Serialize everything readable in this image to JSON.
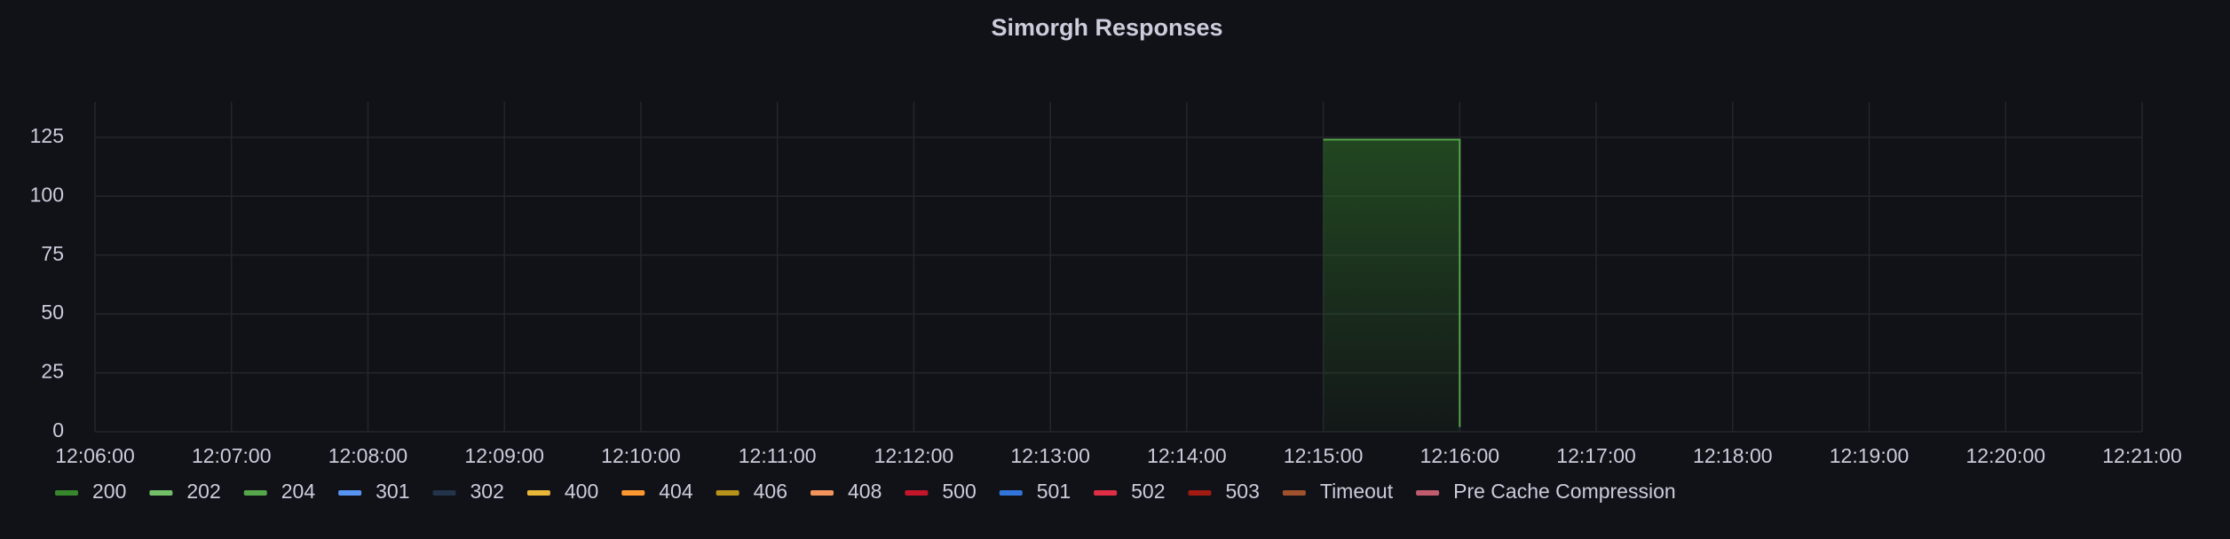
{
  "chart_data": {
    "type": "line",
    "title": "Simorgh Responses",
    "x": [
      "12:15:00",
      "12:16:00",
      "12:16:00"
    ],
    "xlim": [
      "12:06:00",
      "12:21:00"
    ],
    "xticks": [
      "12:06:00",
      "12:07:00",
      "12:08:00",
      "12:09:00",
      "12:10:00",
      "12:11:00",
      "12:12:00",
      "12:13:00",
      "12:14:00",
      "12:15:00",
      "12:16:00",
      "12:17:00",
      "12:18:00",
      "12:19:00",
      "12:20:00",
      "12:21:00"
    ],
    "ylim": [
      0,
      140
    ],
    "yticks": [
      0,
      25,
      50,
      75,
      100,
      125
    ],
    "grid": true,
    "legend": "bottom",
    "series": [
      {
        "name": "200",
        "color": "#37872d",
        "values": [
          124,
          124,
          2
        ]
      },
      {
        "name": "202",
        "color": "#73bf69",
        "values": [
          null,
          null,
          null
        ]
      },
      {
        "name": "204",
        "color": "#56a64b",
        "values": [
          null,
          null,
          null
        ]
      },
      {
        "name": "301",
        "color": "#5794f2",
        "values": [
          null,
          null,
          null
        ]
      },
      {
        "name": "302",
        "color": "#22334a",
        "values": [
          null,
          null,
          null
        ]
      },
      {
        "name": "400",
        "color": "#eab839",
        "values": [
          null,
          null,
          null
        ]
      },
      {
        "name": "404",
        "color": "#ff9830",
        "values": [
          null,
          null,
          null
        ]
      },
      {
        "name": "406",
        "color": "#b8931b",
        "values": [
          null,
          null,
          null
        ]
      },
      {
        "name": "408",
        "color": "#f2945c",
        "values": [
          null,
          null,
          null
        ]
      },
      {
        "name": "500",
        "color": "#c4162a",
        "values": [
          null,
          null,
          null
        ]
      },
      {
        "name": "501",
        "color": "#3274d9",
        "values": [
          null,
          null,
          null
        ]
      },
      {
        "name": "502",
        "color": "#e02f44",
        "values": [
          null,
          null,
          null
        ]
      },
      {
        "name": "503",
        "color": "#a11b12",
        "values": [
          null,
          null,
          null
        ]
      },
      {
        "name": "Timeout",
        "color": "#a0522d",
        "values": [
          null,
          null,
          null
        ]
      },
      {
        "name": "Pre Cache Compression",
        "color": "#c15c6f",
        "values": [
          null,
          null,
          null
        ]
      }
    ]
  }
}
